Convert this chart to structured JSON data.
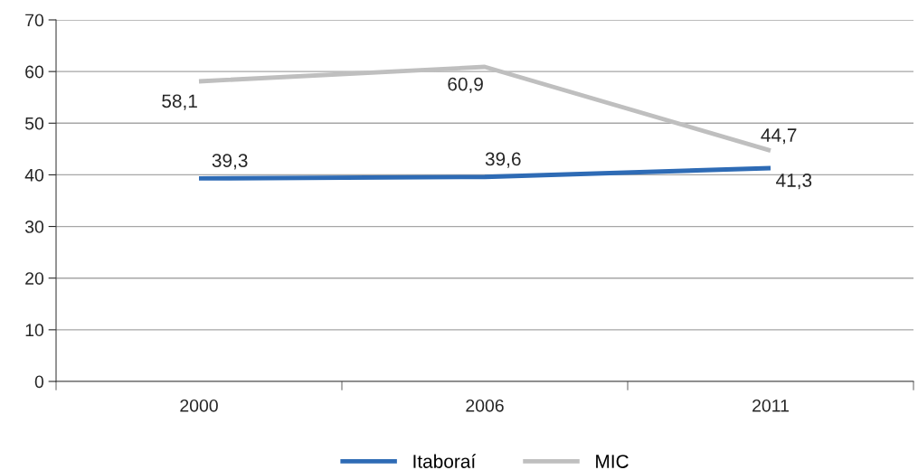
{
  "chart_data": {
    "type": "line",
    "categories": [
      "2000",
      "2006",
      "2011"
    ],
    "series": [
      {
        "name": "Itaboraí",
        "color": "#2e6bb5",
        "values": [
          39.3,
          39.6,
          41.3
        ],
        "value_labels": [
          "39,3",
          "39,6",
          "41,3"
        ]
      },
      {
        "name": "MIC",
        "color": "#bfbfbf",
        "values": [
          58.1,
          60.9,
          44.7
        ],
        "value_labels": [
          "58,1",
          "60,9",
          "44,7"
        ]
      }
    ],
    "ylim": [
      0,
      70
    ],
    "yticks": [
      0,
      10,
      20,
      30,
      40,
      50,
      60,
      70
    ],
    "grid": "y",
    "legend": "bottom",
    "marker": "none",
    "line_style": "solid"
  }
}
